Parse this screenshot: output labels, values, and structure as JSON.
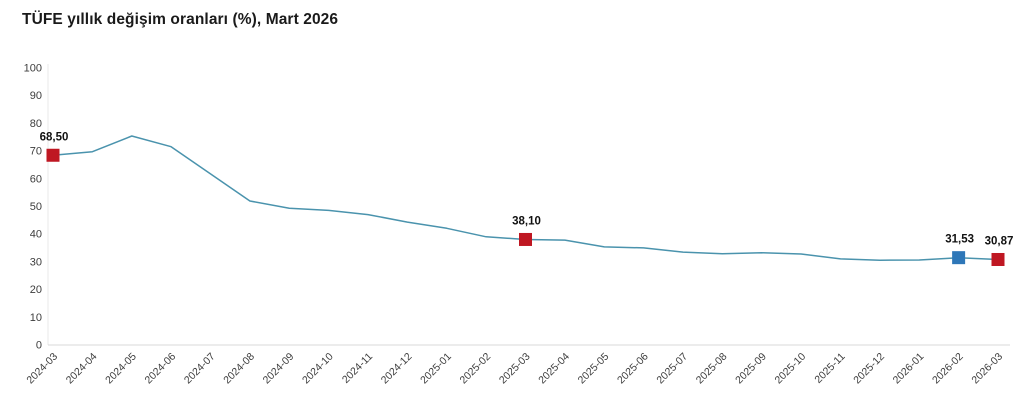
{
  "title": "TÜFE yıllık değişim oranları (%), Mart 2026",
  "chart_data": {
    "type": "line",
    "title": "TÜFE yıllık değişim oranları (%), Mart 2026",
    "x": [
      "2024-03",
      "2024-04",
      "2024-05",
      "2024-06",
      "2024-07",
      "2024-08",
      "2024-09",
      "2024-10",
      "2024-11",
      "2024-12",
      "2025-01",
      "2025-02",
      "2025-03",
      "2025-04",
      "2025-05",
      "2025-06",
      "2025-07",
      "2025-08",
      "2025-09",
      "2025-10",
      "2025-11",
      "2025-12",
      "2026-01",
      "2026-02",
      "2026-03"
    ],
    "series": [
      {
        "name": "TÜFE yıllık değişim oranı (%)",
        "values": [
          68.5,
          69.8,
          75.45,
          71.6,
          61.78,
          51.97,
          49.38,
          48.58,
          47.09,
          44.38,
          42.12,
          39.05,
          38.1,
          37.86,
          35.41,
          35.05,
          33.52,
          32.95,
          33.29,
          32.87,
          31.07,
          30.6,
          30.7,
          31.53,
          30.87
        ]
      }
    ],
    "ylim": [
      0,
      100
    ],
    "y_tick_step": 10,
    "y_tick_labels": [
      "0",
      "10",
      "20",
      "30",
      "40",
      "50",
      "60",
      "70",
      "80",
      "90",
      "100"
    ],
    "grid": false,
    "legend_position": "none",
    "xlabel": "",
    "ylabel": "",
    "annotations": [
      {
        "x": "2024-03",
        "value": 68.5,
        "label": "68,50",
        "marker_color": "#bf1722"
      },
      {
        "x": "2025-03",
        "value": 38.1,
        "label": "38,10",
        "marker_color": "#bf1722"
      },
      {
        "x": "2026-02",
        "value": 31.53,
        "label": "31,53",
        "marker_color": "#2e77b8"
      },
      {
        "x": "2026-03",
        "value": 30.87,
        "label": "30,87",
        "marker_color": "#bf1722"
      }
    ],
    "colors": {
      "line": "#4a93ad",
      "marker_red": "#bf1722",
      "marker_blue": "#2e77b8",
      "y_axis_line": "#e9e9e9",
      "x_axis_line": "#d9d9d9",
      "tick_text": "#3d3d3d",
      "annotation_text": "#111111",
      "background": "#ffffff"
    }
  }
}
